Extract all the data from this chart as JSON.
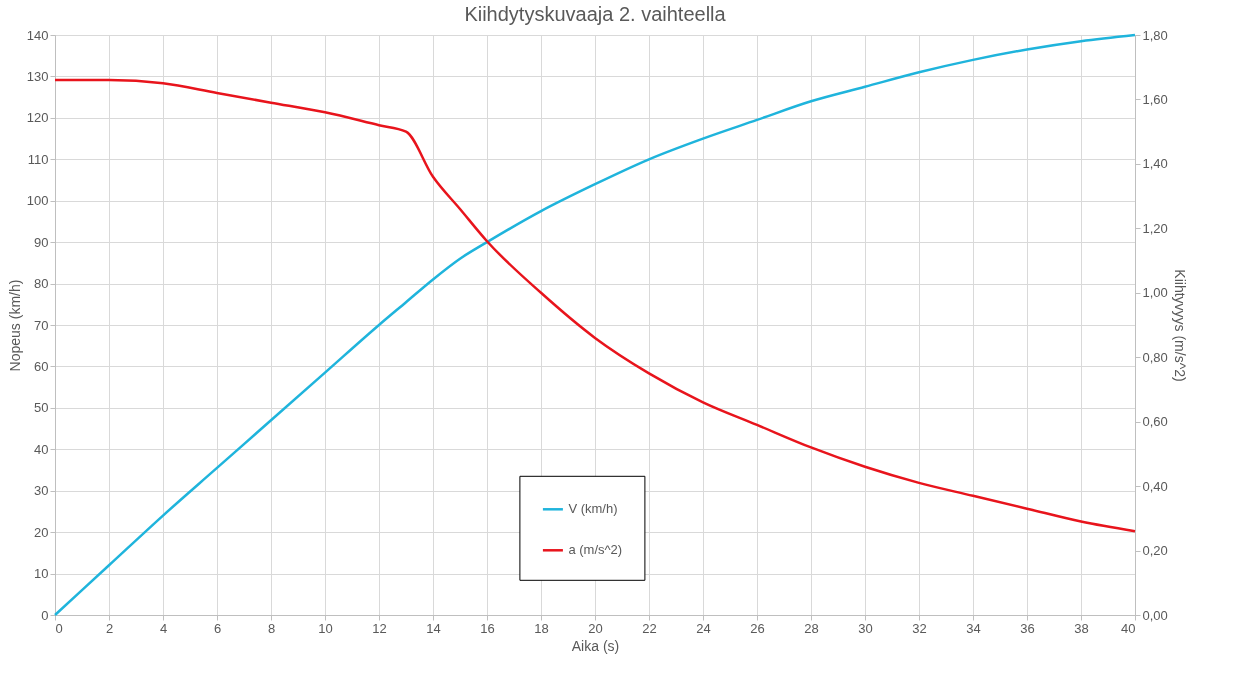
{
  "chart_data": {
    "type": "line",
    "title": "Kiihdytyskuvaaja 2. vaihteella",
    "xlabel": "Aika (s)",
    "ylabel": "Nopeus (km/h)",
    "y2label": "Kiihtyvyys (m/s^2)",
    "xlim": [
      0,
      40
    ],
    "xticks": [
      0,
      2,
      4,
      6,
      8,
      10,
      12,
      14,
      16,
      18,
      20,
      22,
      24,
      26,
      28,
      30,
      32,
      34,
      36,
      38,
      40
    ],
    "ylim": [
      0,
      140
    ],
    "yticks": [
      0,
      10,
      20,
      30,
      40,
      50,
      60,
      70,
      80,
      90,
      100,
      110,
      120,
      130,
      140
    ],
    "y2lim": [
      0,
      1.8
    ],
    "y2ticks": [
      {
        "value": 0,
        "label": "0,00"
      },
      {
        "value": 0.2,
        "label": "0,20"
      },
      {
        "value": 0.4,
        "label": "0,40"
      },
      {
        "value": 0.6,
        "label": "0,60"
      },
      {
        "value": 0.8,
        "label": "0,80"
      },
      {
        "value": 1.0,
        "label": "1,00"
      },
      {
        "value": 1.2,
        "label": "1,20"
      },
      {
        "value": 1.4,
        "label": "1,40"
      },
      {
        "value": 1.6,
        "label": "1,60"
      },
      {
        "value": 1.8,
        "label": "1,80"
      }
    ],
    "x": [
      0,
      2,
      4,
      6,
      8,
      10,
      12,
      13,
      14,
      15,
      16,
      18,
      20,
      22,
      24,
      26,
      28,
      30,
      32,
      34,
      36,
      38,
      40
    ],
    "series": [
      {
        "name": "V (km/h)",
        "color": "#1fb4dc",
        "values": [
          0,
          12,
          24,
          35.5,
          47,
          58.5,
          70,
          75.5,
          81,
          86,
          90,
          97.5,
          104,
          110,
          115,
          119.5,
          124,
          127.5,
          131,
          134,
          136.5,
          138.5,
          140
        ]
      },
      {
        "name": "a (m/s^2)",
        "color": "#e8141c",
        "axis": "y2",
        "values": [
          1.66,
          1.66,
          1.65,
          1.62,
          1.59,
          1.56,
          1.52,
          1.5,
          1.36,
          1.26,
          1.16,
          1.0,
          0.86,
          0.75,
          0.66,
          0.59,
          0.52,
          0.46,
          0.41,
          0.37,
          0.33,
          0.29,
          0.26
        ]
      }
    ],
    "grid": true,
    "legend": "bottom",
    "marker": "none",
    "line_style": "solid"
  }
}
